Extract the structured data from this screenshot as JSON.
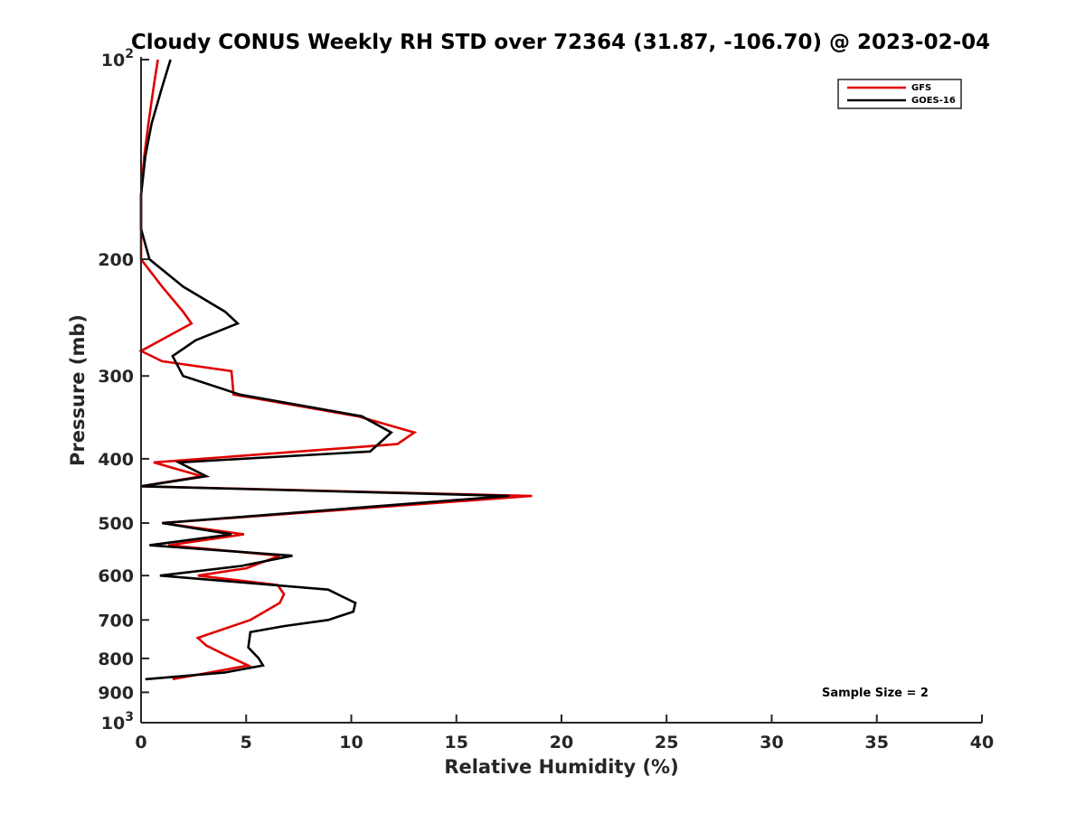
{
  "chart_data": {
    "type": "line",
    "title": "Cloudy CONUS Weekly RH STD over 72364 (31.87, -106.70) @ 2023-02-04",
    "xlabel": "Relative Humidity (%)",
    "ylabel": "Pressure (mb)",
    "xlim": [
      0,
      40
    ],
    "ylim": [
      100,
      1000
    ],
    "yscale": "log",
    "y_reversed": true,
    "x_ticks": [
      "0",
      "5",
      "10",
      "15",
      "20",
      "25",
      "30",
      "35",
      "40"
    ],
    "y_ticks": [
      {
        "value": 100,
        "base": "10",
        "exp": "2"
      },
      {
        "value": 200,
        "label": "200"
      },
      {
        "value": 300,
        "label": "300"
      },
      {
        "value": 400,
        "label": "400"
      },
      {
        "value": 500,
        "label": "500"
      },
      {
        "value": 600,
        "label": "600"
      },
      {
        "value": 700,
        "label": "700"
      },
      {
        "value": 800,
        "label": "800"
      },
      {
        "value": 900,
        "label": "900"
      },
      {
        "value": 1000,
        "base": "10",
        "exp": "3"
      }
    ],
    "grid": false,
    "legend_position": "top-right",
    "annotation": "Sample Size = 2",
    "series": [
      {
        "name": "GFS",
        "color": "#e00000",
        "points": [
          [
            0.8,
            100
          ],
          [
            0.6,
            110
          ],
          [
            0.35,
            125
          ],
          [
            0.15,
            140
          ],
          [
            0.0,
            160
          ],
          [
            0.0,
            180
          ],
          [
            0.0,
            200
          ],
          [
            1.0,
            220
          ],
          [
            2.0,
            240
          ],
          [
            2.4,
            250
          ],
          [
            0.0,
            275
          ],
          [
            1.0,
            285
          ],
          [
            4.3,
            295
          ],
          [
            4.4,
            320
          ],
          [
            10.3,
            345
          ],
          [
            13.0,
            365
          ],
          [
            12.2,
            380
          ],
          [
            0.6,
            405
          ],
          [
            2.9,
            425
          ],
          [
            0.0,
            440
          ],
          [
            18.6,
            455
          ],
          [
            1.0,
            500
          ],
          [
            4.9,
            520
          ],
          [
            1.3,
            540
          ],
          [
            6.6,
            560
          ],
          [
            5.0,
            585
          ],
          [
            2.7,
            600
          ],
          [
            6.5,
            620
          ],
          [
            6.8,
            640
          ],
          [
            6.6,
            660
          ],
          [
            5.2,
            700
          ],
          [
            2.7,
            745
          ],
          [
            3.1,
            765
          ],
          [
            4.0,
            790
          ],
          [
            5.1,
            820
          ],
          [
            1.5,
            860
          ]
        ]
      },
      {
        "name": "GOES-16",
        "color": "#000000",
        "points": [
          [
            1.4,
            100
          ],
          [
            1.0,
            110
          ],
          [
            0.5,
            125
          ],
          [
            0.2,
            140
          ],
          [
            0.0,
            160
          ],
          [
            0.0,
            180
          ],
          [
            0.4,
            200
          ],
          [
            2.0,
            220
          ],
          [
            4.0,
            240
          ],
          [
            4.6,
            250
          ],
          [
            2.6,
            265
          ],
          [
            1.5,
            280
          ],
          [
            2.0,
            300
          ],
          [
            4.7,
            320
          ],
          [
            10.5,
            345
          ],
          [
            11.9,
            365
          ],
          [
            10.9,
            390
          ],
          [
            1.8,
            405
          ],
          [
            3.1,
            425
          ],
          [
            0.0,
            440
          ],
          [
            17.5,
            455
          ],
          [
            1.0,
            500
          ],
          [
            4.3,
            520
          ],
          [
            0.4,
            540
          ],
          [
            7.2,
            560
          ],
          [
            4.8,
            580
          ],
          [
            0.9,
            600
          ],
          [
            8.9,
            630
          ],
          [
            10.2,
            660
          ],
          [
            10.1,
            680
          ],
          [
            8.9,
            700
          ],
          [
            6.8,
            715
          ],
          [
            5.2,
            730
          ],
          [
            5.1,
            770
          ],
          [
            5.6,
            800
          ],
          [
            5.8,
            820
          ],
          [
            4.0,
            840
          ],
          [
            0.2,
            860
          ]
        ]
      }
    ]
  }
}
